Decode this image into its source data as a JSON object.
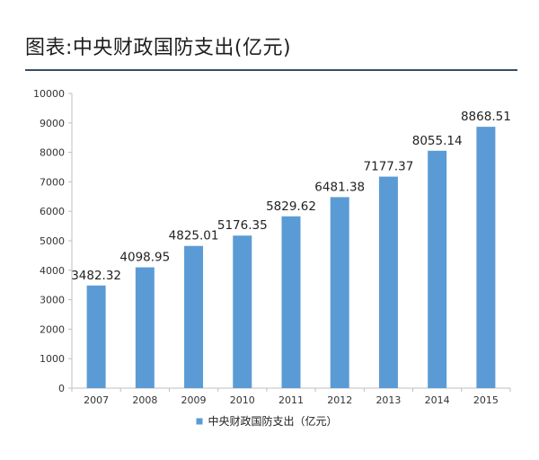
{
  "header": {
    "title": "图表:中央财政国防支出(亿元)"
  },
  "chart_data": {
    "type": "bar",
    "title": "图表:中央财政国防支出(亿元)",
    "categories": [
      "2007",
      "2008",
      "2009",
      "2010",
      "2011",
      "2012",
      "2013",
      "2014",
      "2015"
    ],
    "series": [
      {
        "name": "中央财政国防支出（亿元）",
        "values": [
          3482.32,
          4098.95,
          4825.01,
          5176.35,
          5829.62,
          6481.38,
          7177.37,
          8055.14,
          8868.51
        ]
      }
    ],
    "data_labels": [
      "3482.32",
      "4098.95",
      "4825.01",
      "5176.35",
      "5829.62",
      "6481.38",
      "7177.37",
      "8055.14",
      "8868.51"
    ],
    "ylim": [
      0,
      10000
    ],
    "yticks": [
      0,
      1000,
      2000,
      3000,
      4000,
      5000,
      6000,
      7000,
      8000,
      9000,
      10000
    ],
    "xlabel": "",
    "ylabel": "",
    "grid": false,
    "legend": {
      "position": "bottom",
      "label": "中央财政国防支出（亿元）"
    },
    "colors": {
      "bar": "#5b9bd5",
      "axis": "#bfbfbf"
    }
  }
}
